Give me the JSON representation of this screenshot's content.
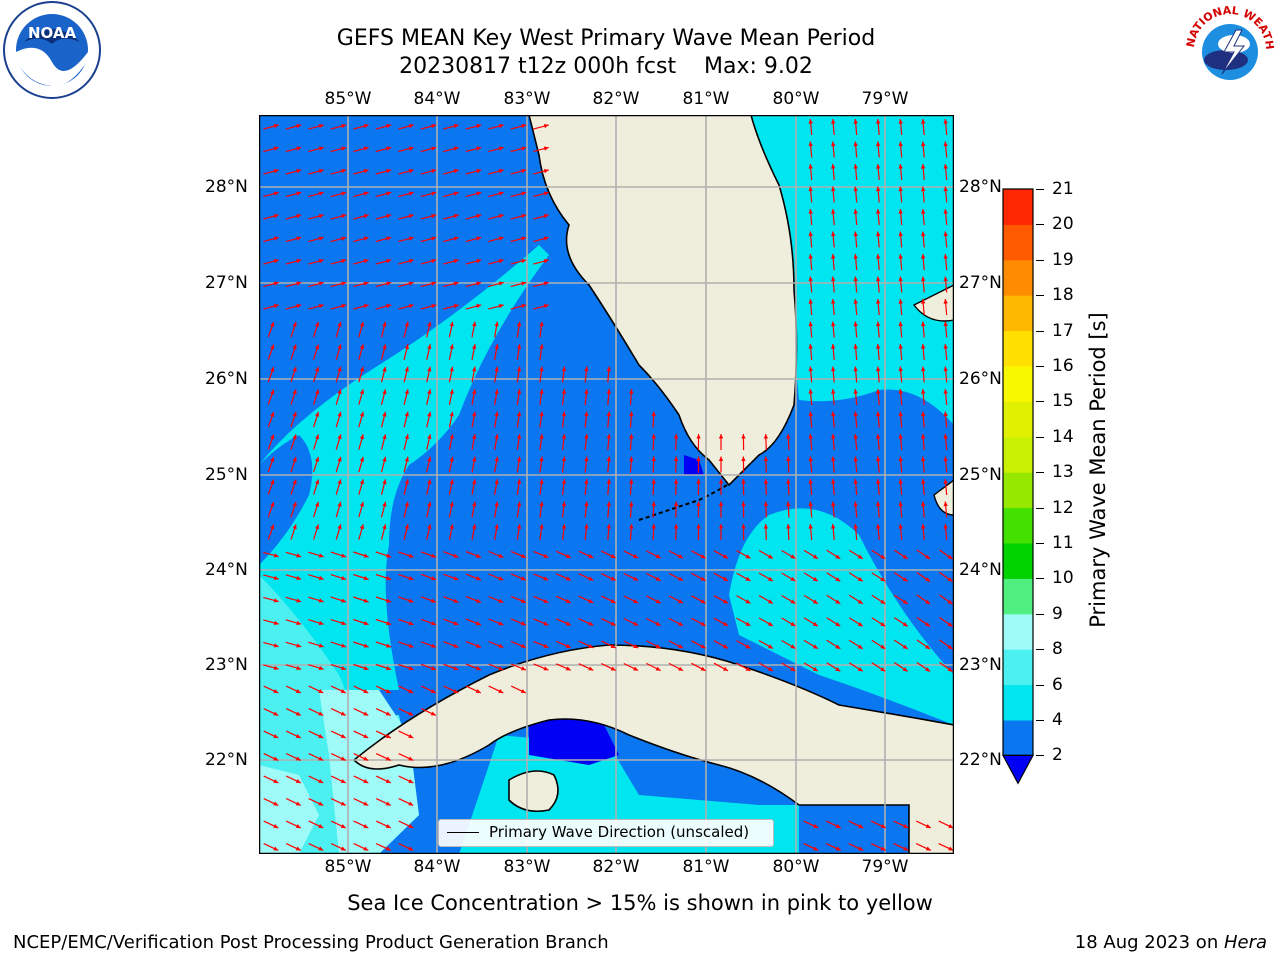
{
  "title_line1": "GEFS MEAN Key West Primary Wave Mean Period",
  "title_line2": "20230817 t12z 000h fcst    Max: 9.02",
  "lon_labels": [
    "85°W",
    "84°W",
    "83°W",
    "82°W",
    "81°W",
    "80°W",
    "79°W"
  ],
  "lat_labels": [
    "28°N",
    "27°N",
    "26°N",
    "25°N",
    "24°N",
    "23°N",
    "22°N"
  ],
  "colorbar": {
    "label": "Primary Wave Mean Period [s]",
    "ticks": [
      "2",
      "4",
      "6",
      "8",
      "9",
      "10",
      "11",
      "12",
      "13",
      "14",
      "15",
      "16",
      "17",
      "18",
      "19",
      "20",
      "21"
    ],
    "colors": [
      "#0a77f0",
      "#00e6f0",
      "#4df0f0",
      "#9ffbf7",
      "#4ff07f",
      "#00d200",
      "#44e000",
      "#96e800",
      "#c8f000",
      "#e0f000",
      "#f8f800",
      "#ffe000",
      "#ffb800",
      "#ff8c00",
      "#ff5a00",
      "#ff2800"
    ],
    "under_color": "#0000f5"
  },
  "legend": {
    "text": "Primary Wave Direction (unscaled)"
  },
  "footnote": "Sea Ice Concentration > 15% is shown in pink to yellow",
  "credit": "NCEP/EMC/Verification Post Processing Product Generation Branch",
  "date": "18 Aug 2023 on ",
  "host": "Hera",
  "colors": {
    "land": "#efeedd",
    "period_2_4": "#0a77f0",
    "period_4_6": "#00e6f0",
    "period_6_8": "#4df0f0",
    "period_8_9": "#9ffbf7",
    "under": "#0000f5",
    "arrow": "#ff0000",
    "grid": "#b0b0b0"
  },
  "logos": {
    "noaa": "NOAA",
    "nws": "NATIONAL WEATHER SERVICE"
  }
}
